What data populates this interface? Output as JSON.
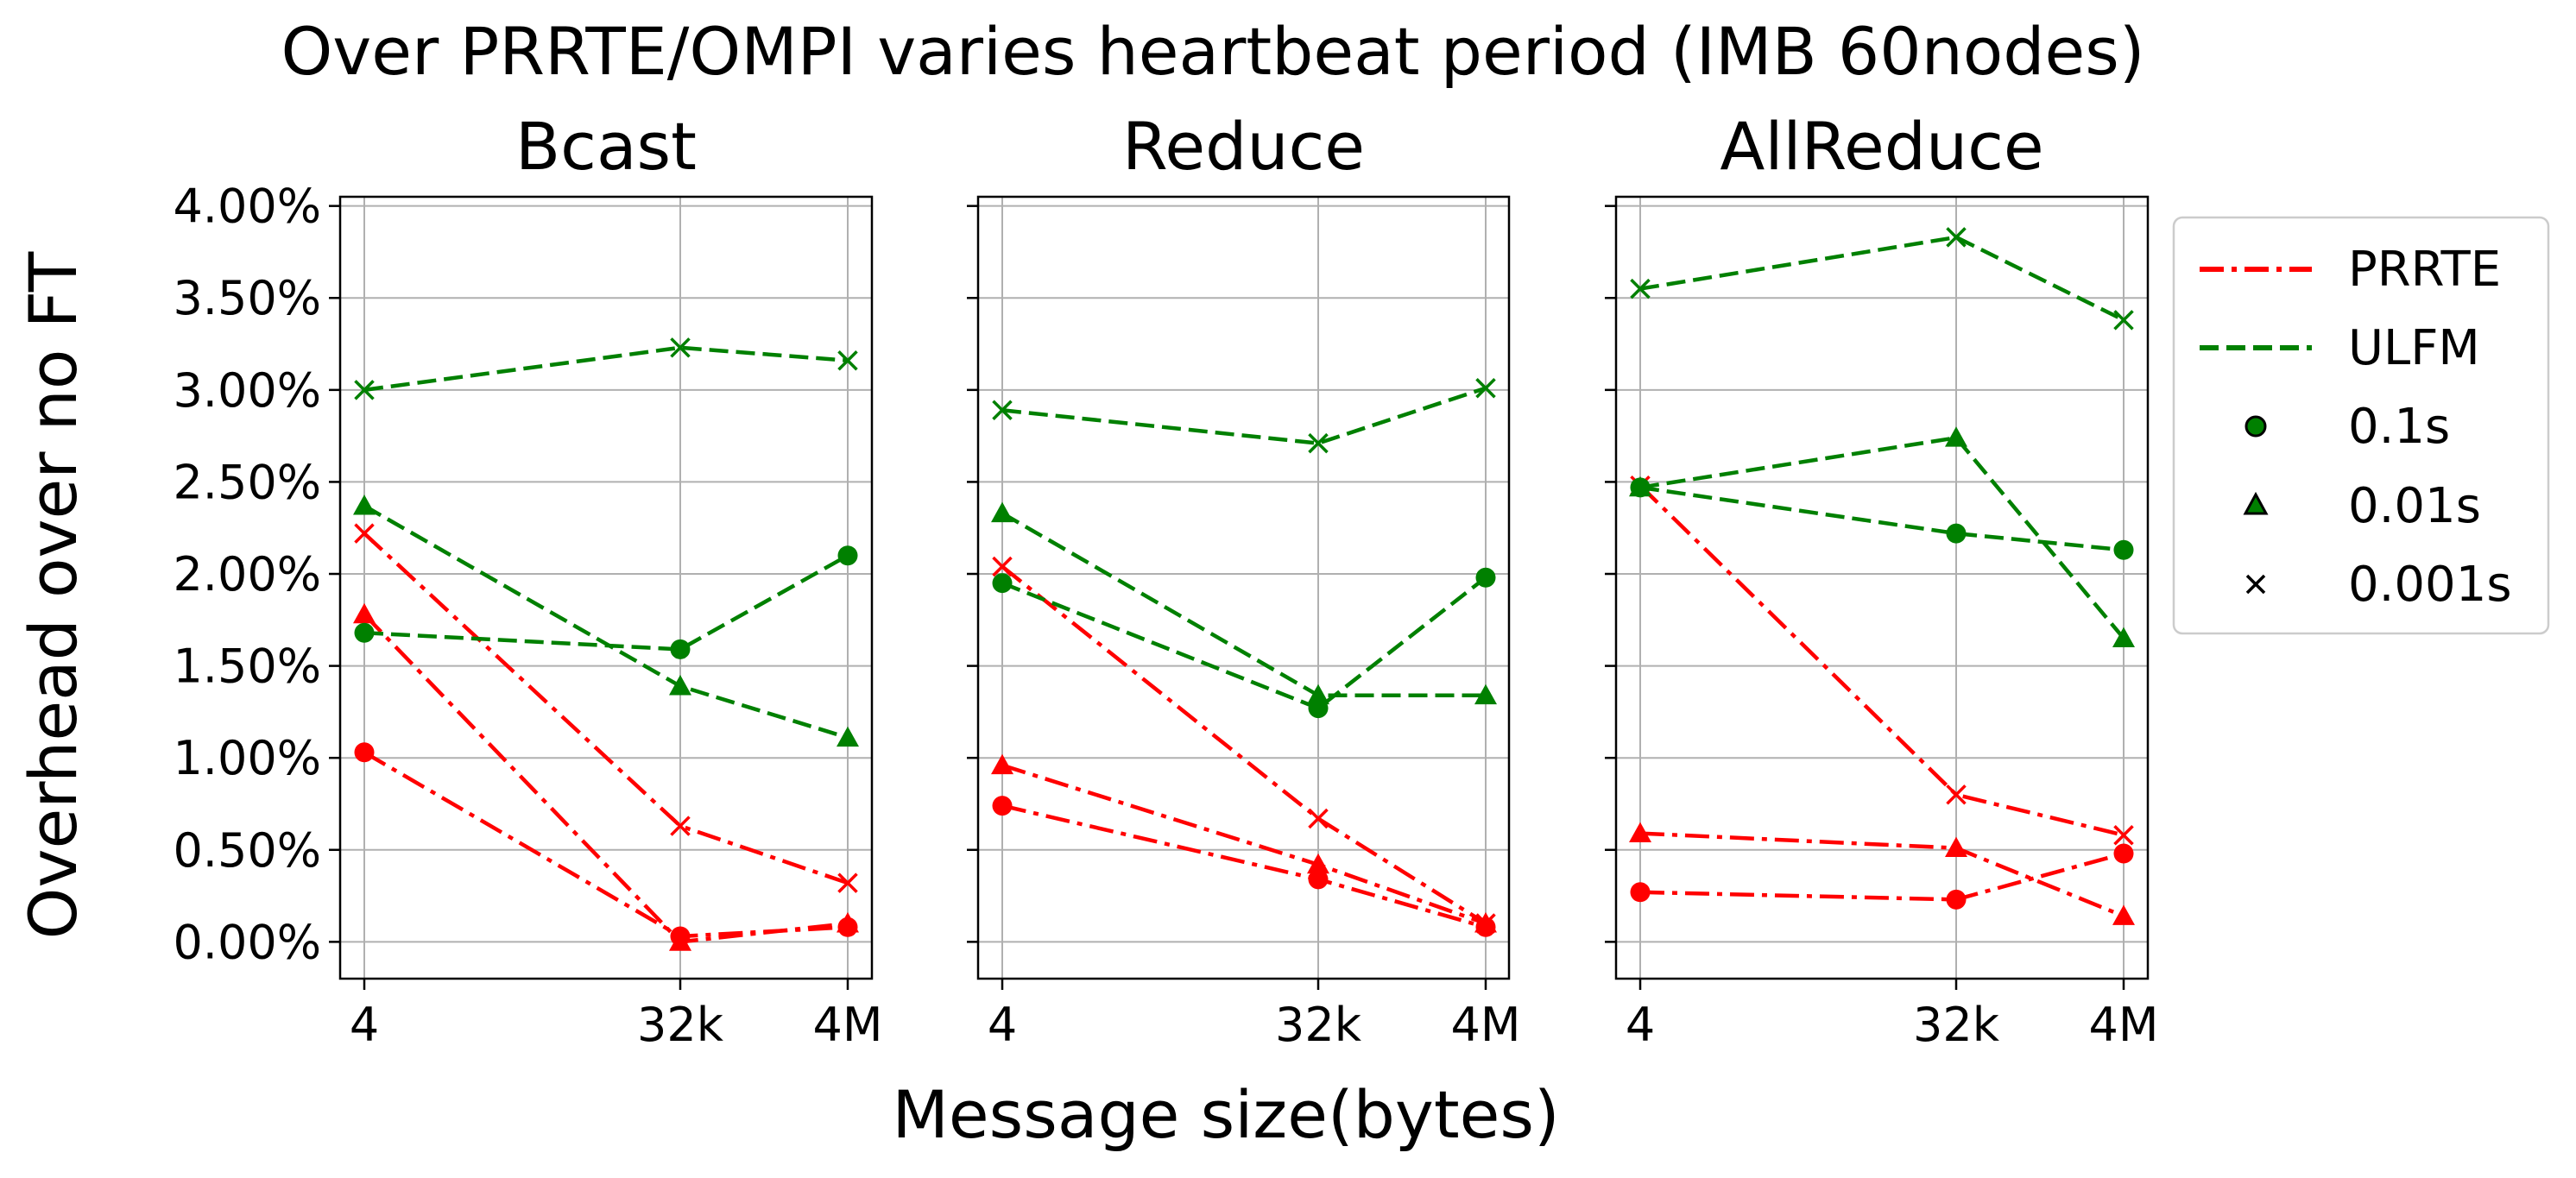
{
  "title": "Over PRRTE/OMPI varies heartbeat period (IMB 60nodes)",
  "xlabel": "Message size(bytes)",
  "ylabel": "Overhead over no FT",
  "legend": {
    "placement": "right",
    "entries": [
      {
        "label": "PRRTE",
        "kind": "line",
        "color": "#ff0000",
        "dash": "dashdot"
      },
      {
        "label": "ULFM",
        "kind": "line",
        "color": "#008000",
        "dash": "dashed"
      },
      {
        "label": "0.1s",
        "kind": "marker",
        "marker": "circle"
      },
      {
        "label": "0.01s",
        "kind": "marker",
        "marker": "triangle"
      },
      {
        "label": "0.001s",
        "kind": "marker",
        "marker": "x"
      }
    ]
  },
  "colors": {
    "PRRTE": "#ff0000",
    "ULFM": "#008000"
  },
  "chart_data": [
    {
      "type": "line",
      "title": "Bcast",
      "categories": [
        "4",
        "32k",
        "4M"
      ],
      "yticks": [
        "0.00%",
        "0.50%",
        "1.00%",
        "1.50%",
        "2.00%",
        "2.50%",
        "3.00%",
        "3.50%",
        "4.00%"
      ],
      "ylim": [
        -0.2,
        4.05
      ],
      "grid": true,
      "series": [
        {
          "group": "PRRTE",
          "marker": "circle",
          "values": [
            1.03,
            0.03,
            0.08
          ]
        },
        {
          "group": "PRRTE",
          "marker": "triangle",
          "values": [
            1.78,
            0.0,
            0.1
          ]
        },
        {
          "group": "PRRTE",
          "marker": "x",
          "values": [
            2.22,
            0.63,
            0.32
          ]
        },
        {
          "group": "ULFM",
          "marker": "circle",
          "values": [
            1.68,
            1.59,
            2.1
          ]
        },
        {
          "group": "ULFM",
          "marker": "triangle",
          "values": [
            2.37,
            1.39,
            1.11
          ]
        },
        {
          "group": "ULFM",
          "marker": "x",
          "values": [
            3.0,
            3.23,
            3.16
          ]
        }
      ]
    },
    {
      "type": "line",
      "title": "Reduce",
      "categories": [
        "4",
        "32k",
        "4M"
      ],
      "ylim": [
        -0.2,
        4.05
      ],
      "grid": true,
      "series": [
        {
          "group": "PRRTE",
          "marker": "circle",
          "values": [
            0.74,
            0.34,
            0.08
          ]
        },
        {
          "group": "PRRTE",
          "marker": "triangle",
          "values": [
            0.96,
            0.42,
            0.1
          ]
        },
        {
          "group": "PRRTE",
          "marker": "x",
          "values": [
            2.04,
            0.67,
            0.1
          ]
        },
        {
          "group": "ULFM",
          "marker": "circle",
          "values": [
            1.95,
            1.27,
            1.98
          ]
        },
        {
          "group": "ULFM",
          "marker": "triangle",
          "values": [
            2.33,
            1.34,
            1.34
          ]
        },
        {
          "group": "ULFM",
          "marker": "x",
          "values": [
            2.89,
            2.71,
            3.01
          ]
        }
      ]
    },
    {
      "type": "line",
      "title": "AllReduce",
      "categories": [
        "4",
        "32k",
        "4M"
      ],
      "ylim": [
        -0.2,
        4.05
      ],
      "grid": true,
      "series": [
        {
          "group": "PRRTE",
          "marker": "circle",
          "values": [
            0.27,
            0.23,
            0.48
          ]
        },
        {
          "group": "PRRTE",
          "marker": "triangle",
          "values": [
            0.59,
            0.51,
            0.14
          ]
        },
        {
          "group": "PRRTE",
          "marker": "x",
          "values": [
            2.48,
            0.8,
            0.58
          ]
        },
        {
          "group": "ULFM",
          "marker": "circle",
          "values": [
            2.47,
            2.22,
            2.13
          ]
        },
        {
          "group": "ULFM",
          "marker": "triangle",
          "values": [
            2.47,
            2.74,
            1.65
          ]
        },
        {
          "group": "ULFM",
          "marker": "x",
          "values": [
            3.55,
            3.83,
            3.38
          ]
        }
      ]
    }
  ]
}
